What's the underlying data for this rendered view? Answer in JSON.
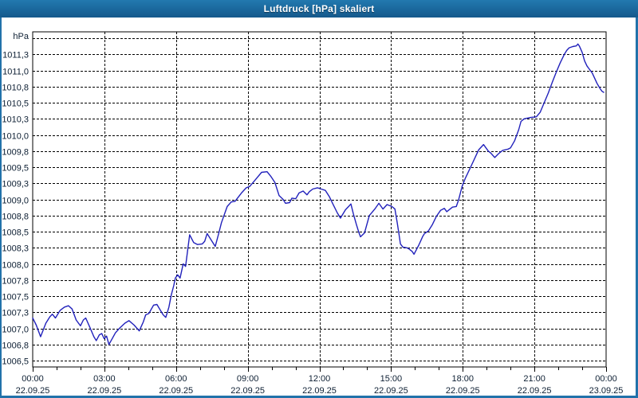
{
  "window": {
    "title": "Luftdruck [hPa] skaliert"
  },
  "colors": {
    "titlebar": "#1a679c",
    "window_border": "#2272aa",
    "plot_background": "#ffffff",
    "frame": "#000000",
    "grid": "#000000",
    "label_text": "#0d1f33",
    "line": "#2121bb",
    "title_text": "#ffffff"
  },
  "chart_data": {
    "type": "line",
    "title": "Luftdruck [hPa] skaliert",
    "unit_label": "hPa",
    "grid": "dashed",
    "legend": "none",
    "y_axis": {
      "min": 1006.5,
      "max": 1011.5,
      "grid_step": 0.25,
      "top_gridline_unlabeled": true,
      "tick_labels_top_to_bottom": [
        "1011,3",
        "1011,0",
        "1010,8",
        "1010,5",
        "1010,3",
        "1010,0",
        "1009,8",
        "1009,5",
        "1009,3",
        "1009,0",
        "1008,8",
        "1008,5",
        "1008,3",
        "1008,0",
        "1007,8",
        "1007,5",
        "1007,3",
        "1007,0",
        "1006,8",
        "1006,5"
      ]
    },
    "x_axis": {
      "hours_span": 24,
      "major_step_hours": 3,
      "minor_tick_hours": 1,
      "tick_times": [
        "00:00",
        "03:00",
        "06:00",
        "09:00",
        "12:00",
        "15:00",
        "18:00",
        "21:00",
        "00:00"
      ],
      "tick_dates": [
        "22.09.25",
        "22.09.25",
        "22.09.25",
        "22.09.25",
        "22.09.25",
        "22.09.25",
        "22.09.25",
        "22.09.25",
        "23.09.25"
      ]
    },
    "series": [
      {
        "name": "Luftdruck",
        "unit": "hPa",
        "color": "#2121bb",
        "points_time_hours_value_hpa": [
          [
            0.0,
            1007.16
          ],
          [
            0.15,
            1007.05
          ],
          [
            0.33,
            1006.87
          ],
          [
            0.55,
            1007.08
          ],
          [
            0.72,
            1007.18
          ],
          [
            0.82,
            1007.22
          ],
          [
            0.95,
            1007.16
          ],
          [
            1.15,
            1007.28
          ],
          [
            1.33,
            1007.33
          ],
          [
            1.5,
            1007.35
          ],
          [
            1.65,
            1007.3
          ],
          [
            1.82,
            1007.13
          ],
          [
            2.0,
            1007.04
          ],
          [
            2.12,
            1007.13
          ],
          [
            2.22,
            1007.16
          ],
          [
            2.4,
            1007.01
          ],
          [
            2.56,
            1006.87
          ],
          [
            2.66,
            1006.81
          ],
          [
            2.79,
            1006.9
          ],
          [
            2.89,
            1006.92
          ],
          [
            2.99,
            1006.84
          ],
          [
            3.09,
            1006.88
          ],
          [
            3.19,
            1006.75
          ],
          [
            3.46,
            1006.93
          ],
          [
            3.63,
            1007.0
          ],
          [
            3.86,
            1007.08
          ],
          [
            4.03,
            1007.12
          ],
          [
            4.25,
            1007.05
          ],
          [
            4.46,
            1006.96
          ],
          [
            4.63,
            1007.1
          ],
          [
            4.73,
            1007.21
          ],
          [
            4.86,
            1007.23
          ],
          [
            5.06,
            1007.36
          ],
          [
            5.2,
            1007.37
          ],
          [
            5.36,
            1007.27
          ],
          [
            5.46,
            1007.21
          ],
          [
            5.57,
            1007.17
          ],
          [
            5.7,
            1007.33
          ],
          [
            5.8,
            1007.52
          ],
          [
            5.9,
            1007.66
          ],
          [
            5.97,
            1007.78
          ],
          [
            6.07,
            1007.83
          ],
          [
            6.17,
            1007.78
          ],
          [
            6.3,
            1008.0
          ],
          [
            6.4,
            1007.96
          ],
          [
            6.57,
            1008.45
          ],
          [
            6.74,
            1008.33
          ],
          [
            6.9,
            1008.3
          ],
          [
            7.1,
            1008.31
          ],
          [
            7.2,
            1008.35
          ],
          [
            7.3,
            1008.47
          ],
          [
            7.47,
            1008.37
          ],
          [
            7.64,
            1008.27
          ],
          [
            7.77,
            1008.45
          ],
          [
            7.9,
            1008.64
          ],
          [
            8.14,
            1008.89
          ],
          [
            8.31,
            1008.96
          ],
          [
            8.47,
            1008.97
          ],
          [
            8.74,
            1009.1
          ],
          [
            8.94,
            1009.18
          ],
          [
            9.08,
            1009.2
          ],
          [
            9.31,
            1009.3
          ],
          [
            9.58,
            1009.42
          ],
          [
            9.81,
            1009.43
          ],
          [
            9.98,
            1009.35
          ],
          [
            10.14,
            1009.26
          ],
          [
            10.31,
            1009.06
          ],
          [
            10.48,
            1009.0
          ],
          [
            10.58,
            1008.94
          ],
          [
            10.75,
            1008.95
          ],
          [
            10.85,
            1009.02
          ],
          [
            11.01,
            1009.01
          ],
          [
            11.15,
            1009.1
          ],
          [
            11.32,
            1009.13
          ],
          [
            11.48,
            1009.07
          ],
          [
            11.58,
            1009.12
          ],
          [
            11.72,
            1009.16
          ],
          [
            11.92,
            1009.18
          ],
          [
            12.08,
            1009.16
          ],
          [
            12.25,
            1009.14
          ],
          [
            12.42,
            1009.04
          ],
          [
            12.55,
            1008.94
          ],
          [
            12.75,
            1008.79
          ],
          [
            12.88,
            1008.71
          ],
          [
            13.09,
            1008.84
          ],
          [
            13.25,
            1008.9
          ],
          [
            13.32,
            1008.93
          ],
          [
            13.42,
            1008.78
          ],
          [
            13.55,
            1008.61
          ],
          [
            13.65,
            1008.49
          ],
          [
            13.72,
            1008.42
          ],
          [
            13.89,
            1008.48
          ],
          [
            14.09,
            1008.75
          ],
          [
            14.32,
            1008.85
          ],
          [
            14.49,
            1008.94
          ],
          [
            14.66,
            1008.85
          ],
          [
            14.83,
            1008.92
          ],
          [
            15.03,
            1008.89
          ],
          [
            15.16,
            1008.85
          ],
          [
            15.26,
            1008.63
          ],
          [
            15.33,
            1008.46
          ],
          [
            15.39,
            1008.31
          ],
          [
            15.49,
            1008.26
          ],
          [
            15.66,
            1008.25
          ],
          [
            15.76,
            1008.23
          ],
          [
            15.89,
            1008.19
          ],
          [
            15.96,
            1008.15
          ],
          [
            16.16,
            1008.29
          ],
          [
            16.33,
            1008.43
          ],
          [
            16.4,
            1008.47
          ],
          [
            16.56,
            1008.51
          ],
          [
            16.73,
            1008.61
          ],
          [
            16.9,
            1008.74
          ],
          [
            17.07,
            1008.83
          ],
          [
            17.23,
            1008.86
          ],
          [
            17.33,
            1008.81
          ],
          [
            17.57,
            1008.88
          ],
          [
            17.73,
            1008.89
          ],
          [
            17.83,
            1009.0
          ],
          [
            17.97,
            1009.2
          ],
          [
            18.1,
            1009.32
          ],
          [
            18.33,
            1009.5
          ],
          [
            18.67,
            1009.77
          ],
          [
            18.87,
            1009.85
          ],
          [
            19.07,
            1009.75
          ],
          [
            19.17,
            1009.72
          ],
          [
            19.34,
            1009.65
          ],
          [
            19.5,
            1009.71
          ],
          [
            19.67,
            1009.76
          ],
          [
            19.9,
            1009.78
          ],
          [
            20.0,
            1009.8
          ],
          [
            20.17,
            1009.91
          ],
          [
            20.34,
            1010.08
          ],
          [
            20.44,
            1010.21
          ],
          [
            20.57,
            1010.25
          ],
          [
            20.84,
            1010.27
          ],
          [
            21.08,
            1010.28
          ],
          [
            21.24,
            1010.35
          ],
          [
            21.41,
            1010.5
          ],
          [
            21.58,
            1010.65
          ],
          [
            21.75,
            1010.82
          ],
          [
            21.91,
            1010.97
          ],
          [
            22.08,
            1011.12
          ],
          [
            22.25,
            1011.25
          ],
          [
            22.35,
            1011.31
          ],
          [
            22.45,
            1011.35
          ],
          [
            22.6,
            1011.37
          ],
          [
            22.75,
            1011.38
          ],
          [
            22.82,
            1011.41
          ],
          [
            22.88,
            1011.38
          ],
          [
            23.0,
            1011.28
          ],
          [
            23.1,
            1011.15
          ],
          [
            23.2,
            1011.07
          ],
          [
            23.28,
            1011.03
          ],
          [
            23.42,
            1010.96
          ],
          [
            23.52,
            1010.88
          ],
          [
            23.62,
            1010.8
          ],
          [
            23.73,
            1010.73
          ],
          [
            23.82,
            1010.68
          ],
          [
            23.9,
            1010.66
          ]
        ]
      }
    ]
  }
}
